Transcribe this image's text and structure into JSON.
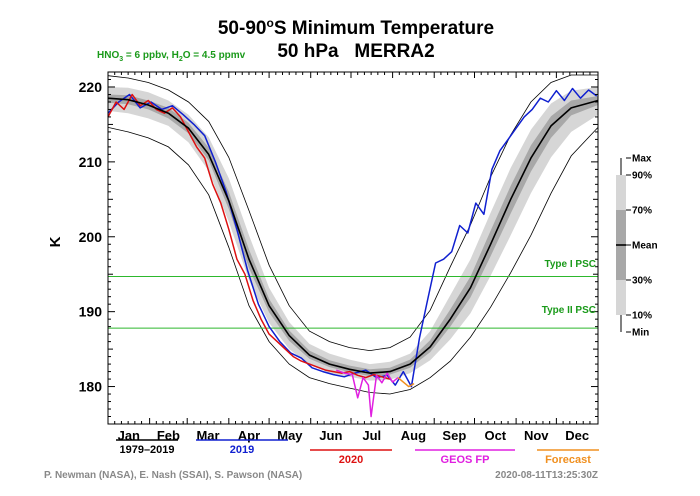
{
  "chart_data": {
    "type": "line",
    "title_line1_prefix": "50-90",
    "title_line1_degree": "o",
    "title_line1_suffix": "S Minimum Temperature",
    "title_line2": "50 hPa   MERRA2",
    "chem_text_1": "HNO",
    "chem_sub_1": "3",
    "chem_text_2": " = 6 ppbv, H",
    "chem_sub_2": "2",
    "chem_text_3": "O = 4.5 ppmv",
    "ylabel": "K",
    "ylim": [
      175,
      222
    ],
    "yticks": [
      180,
      190,
      200,
      210,
      220
    ],
    "x_range_days": [
      0,
      365
    ],
    "months": [
      "Jan",
      "Feb",
      "Mar",
      "Apr",
      "May",
      "Jun",
      "Jul",
      "Aug",
      "Sep",
      "Oct",
      "Nov",
      "Dec"
    ],
    "reference_lines": [
      {
        "label": "Type I PSC",
        "value": 194.7,
        "color": "#2db82d"
      },
      {
        "label": "Type II PSC",
        "value": 187.8,
        "color": "#2db82d"
      }
    ],
    "percentile_legend": {
      "labels": [
        "Max",
        "90%",
        "70%",
        "Mean",
        "30%",
        "10%",
        "Min"
      ]
    },
    "climatology": {
      "day": [
        0,
        15,
        30,
        45,
        60,
        75,
        90,
        105,
        120,
        135,
        150,
        165,
        180,
        195,
        210,
        225,
        240,
        255,
        270,
        285,
        300,
        315,
        330,
        345,
        365
      ],
      "mean": [
        218.5,
        218.3,
        217.6,
        216.5,
        214.5,
        211.0,
        204.8,
        197.0,
        190.8,
        186.8,
        184.2,
        183.0,
        182.3,
        181.8,
        182.0,
        183.0,
        185.3,
        189.0,
        193.2,
        199.0,
        205.0,
        210.5,
        214.8,
        217.2,
        218.2
      ],
      "p10": [
        216.8,
        216.5,
        215.8,
        214.8,
        212.6,
        208.8,
        202.0,
        194.2,
        188.5,
        185.0,
        182.9,
        181.8,
        181.3,
        180.8,
        180.9,
        181.8,
        183.5,
        186.3,
        189.8,
        194.8,
        200.2,
        205.8,
        210.6,
        214.0,
        216.3
      ],
      "p90": [
        220.0,
        219.9,
        219.3,
        218.2,
        216.3,
        213.3,
        207.8,
        200.2,
        193.2,
        188.6,
        185.7,
        184.4,
        183.6,
        183.0,
        183.3,
        184.4,
        187.4,
        192.2,
        197.0,
        203.2,
        209.2,
        214.3,
        217.8,
        219.5,
        220.0
      ],
      "p30": [
        217.9,
        217.7,
        217.0,
        215.8,
        213.8,
        210.2,
        203.7,
        195.8,
        189.9,
        186.1,
        183.7,
        182.6,
        181.9,
        181.4,
        181.6,
        182.5,
        184.6,
        188.0,
        191.9,
        197.4,
        203.1,
        208.7,
        213.2,
        216.2,
        217.6
      ],
      "p70": [
        219.0,
        218.9,
        218.2,
        217.2,
        215.2,
        211.9,
        206.0,
        198.3,
        191.7,
        187.5,
        184.8,
        183.5,
        182.8,
        182.3,
        182.5,
        183.6,
        186.2,
        190.3,
        194.7,
        200.8,
        206.8,
        212.2,
        216.1,
        218.2,
        218.8
      ],
      "max": [
        221.5,
        221.2,
        220.6,
        219.6,
        218.0,
        215.4,
        210.6,
        203.5,
        196.2,
        190.8,
        187.4,
        186.0,
        185.2,
        184.8,
        185.2,
        186.6,
        190.2,
        196.0,
        201.6,
        208.0,
        213.6,
        218.0,
        220.6,
        221.6,
        221.6
      ],
      "min": [
        214.6,
        214.0,
        213.2,
        212.0,
        209.6,
        205.6,
        198.6,
        190.8,
        186.0,
        183.0,
        181.2,
        180.4,
        179.8,
        179.2,
        179.0,
        179.6,
        181.2,
        183.4,
        186.6,
        190.6,
        195.2,
        200.2,
        205.8,
        210.8,
        214.6
      ]
    },
    "series": [
      {
        "name": "1979–2019",
        "color": "#000000",
        "day": [
          0,
          15,
          30,
          45,
          60,
          75,
          90,
          105,
          120,
          135,
          150,
          165,
          180,
          195,
          210,
          225,
          240,
          255,
          270,
          285,
          300,
          315,
          330,
          345,
          365
        ],
        "values": [
          218.5,
          218.3,
          217.6,
          216.5,
          214.5,
          211.0,
          204.8,
          197.0,
          190.8,
          186.8,
          184.2,
          183.0,
          182.3,
          181.8,
          182.0,
          183.0,
          185.3,
          189.0,
          193.2,
          199.0,
          205.0,
          210.5,
          214.8,
          217.2,
          218.2
        ]
      },
      {
        "name": "2019",
        "color": "#1020d0",
        "day": [
          0,
          8,
          16,
          24,
          32,
          40,
          48,
          56,
          64,
          72,
          80,
          88,
          96,
          104,
          112,
          120,
          128,
          136,
          144,
          152,
          160,
          168,
          176,
          184,
          192,
          200,
          208,
          214,
          220,
          226,
          232,
          238,
          244,
          250,
          256,
          262,
          268,
          274,
          280,
          286,
          292,
          298,
          304,
          310,
          316,
          322,
          328,
          334,
          340,
          346,
          352,
          358,
          364
        ],
        "values": [
          216.5,
          218.0,
          219.0,
          217.2,
          218.0,
          217.0,
          217.5,
          216.3,
          215.0,
          213.5,
          210.0,
          206.0,
          201.0,
          195.5,
          191.0,
          188.0,
          186.0,
          184.5,
          183.8,
          182.5,
          182.0,
          181.6,
          181.3,
          181.8,
          182.2,
          181.2,
          181.5,
          180.2,
          182.0,
          180.0,
          186.5,
          191.5,
          196.5,
          197.0,
          198.0,
          201.5,
          200.5,
          204.5,
          203.0,
          209.0,
          211.5,
          213.0,
          214.5,
          216.0,
          217.0,
          218.5,
          218.0,
          219.5,
          218.2,
          219.8,
          218.5,
          219.6,
          218.8
        ]
      },
      {
        "name": "2020",
        "color": "#dd1111",
        "day": [
          0,
          6,
          12,
          18,
          24,
          30,
          36,
          42,
          48,
          54,
          60,
          66,
          72,
          78,
          84,
          90,
          96,
          102,
          108,
          114,
          120,
          126,
          132,
          138,
          144,
          150,
          156,
          162,
          168,
          174,
          180,
          186,
          192,
          198,
          204,
          210
        ],
        "values": [
          216.0,
          218.0,
          217.0,
          219.0,
          217.5,
          218.2,
          217.0,
          216.5,
          217.2,
          216.0,
          214.0,
          212.0,
          210.5,
          207.0,
          204.5,
          201.0,
          197.0,
          195.0,
          191.5,
          189.0,
          187.0,
          186.0,
          185.0,
          184.0,
          183.4,
          183.0,
          182.6,
          182.2,
          182.0,
          181.8,
          182.0,
          181.5,
          181.2,
          181.6,
          181.3,
          181.0
        ]
      },
      {
        "name": "GEOS FP",
        "color": "#e020e0",
        "day": [
          170,
          176,
          182,
          186,
          190,
          194,
          196,
          200,
          204,
          208,
          212,
          216
        ],
        "values": [
          182.2,
          181.8,
          181.6,
          178.5,
          181.2,
          180.2,
          176.0,
          181.5,
          180.5,
          181.8,
          180.6,
          181.2
        ]
      },
      {
        "name": "Forecast",
        "color": "#f09020",
        "day": [
          216,
          220,
          224,
          228
        ],
        "values": [
          181.2,
          180.6,
          180.0,
          180.4
        ]
      }
    ],
    "credit_left": "P. Newman (NASA), E. Nash (SSAI), S. Pawson (NASA)",
    "credit_right": "2020-08-11T13:25:30Z"
  },
  "colors": {
    "band_outer": "#d6d6d6",
    "band_mid": "#a8a8a8",
    "band_inner": "#808080",
    "psc": "#2db82d",
    "chem": "#1a9a1a",
    "credit": "#888888"
  }
}
